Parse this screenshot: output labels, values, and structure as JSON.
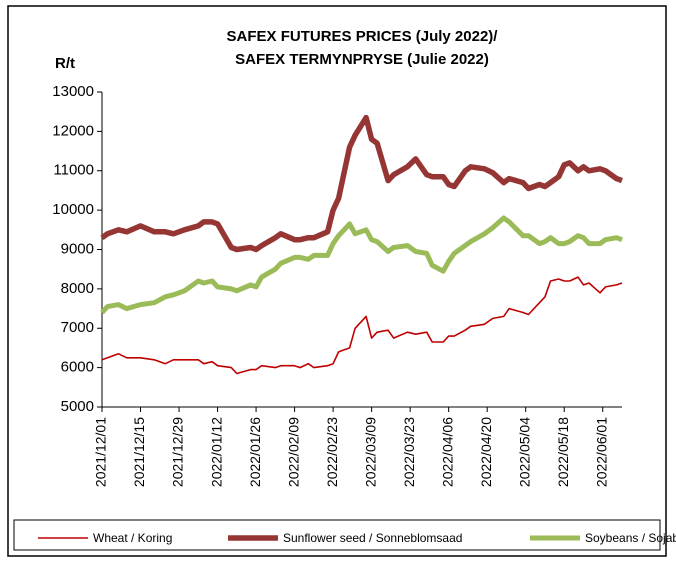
{
  "chart_data": {
    "type": "line",
    "title": [
      "SAFEX FUTURES PRICES (July 2022)/",
      "SAFEX TERMYNPRYSE  (Julie 2022)"
    ],
    "y_label": "R/t",
    "x": [
      "2021/12/01",
      "2021/12/03",
      "2021/12/07",
      "2021/12/10",
      "2021/12/15",
      "2021/12/20",
      "2021/12/24",
      "2021/12/27",
      "2021/12/31",
      "2022/01/05",
      "2022/01/07",
      "2022/01/10",
      "2022/01/12",
      "2022/01/17",
      "2022/01/19",
      "2022/01/24",
      "2022/01/26",
      "2022/01/28",
      "2022/02/02",
      "2022/02/04",
      "2022/02/09",
      "2022/02/11",
      "2022/02/14",
      "2022/02/16",
      "2022/02/21",
      "2022/02/23",
      "2022/02/25",
      "2022/03/01",
      "2022/03/03",
      "2022/03/07",
      "2022/03/09",
      "2022/03/11",
      "2022/03/15",
      "2022/03/17",
      "2022/03/22",
      "2022/03/25",
      "2022/03/29",
      "2022/03/31",
      "2022/04/04",
      "2022/04/06",
      "2022/04/08",
      "2022/04/12",
      "2022/04/14",
      "2022/04/19",
      "2022/04/22",
      "2022/04/26",
      "2022/04/28",
      "2022/05/03",
      "2022/05/05",
      "2022/05/09",
      "2022/05/11",
      "2022/05/13",
      "2022/05/16",
      "2022/05/18",
      "2022/05/20",
      "2022/05/23",
      "2022/05/25",
      "2022/05/27",
      "2022/05/31",
      "2022/06/02",
      "2022/06/06",
      "2022/06/08"
    ],
    "series": [
      {
        "name": "Wheat / Koring",
        "color": "#c00000",
        "values": [
          6200,
          6250,
          6350,
          6250,
          6250,
          6200,
          6100,
          6200,
          6200,
          6200,
          6100,
          6150,
          6050,
          6000,
          5850,
          5950,
          5950,
          6050,
          6000,
          6050,
          6050,
          6000,
          6100,
          6000,
          6050,
          6100,
          6400,
          6500,
          7000,
          7300,
          6750,
          6900,
          6950,
          6750,
          6900,
          6850,
          6900,
          6650,
          6650,
          6800,
          6800,
          6950,
          7050,
          7100,
          7250,
          7300,
          7500,
          7400,
          7350,
          7650,
          7800,
          8200,
          8250,
          8200,
          8200,
          8300,
          8100,
          8150,
          7900,
          8050,
          8100,
          8150
        ]
      },
      {
        "name": "Sunflower seed / Sonneblomsaad",
        "color": "#963634",
        "values": [
          9300,
          9400,
          9500,
          9450,
          9600,
          9450,
          9450,
          9400,
          9500,
          9600,
          9700,
          9700,
          9650,
          9050,
          9000,
          9050,
          9000,
          9100,
          9300,
          9400,
          9250,
          9250,
          9300,
          9300,
          9450,
          10000,
          10300,
          11600,
          11900,
          12350,
          11800,
          11700,
          10750,
          10900,
          11100,
          11300,
          10900,
          10850,
          10850,
          10650,
          10600,
          11000,
          11100,
          11050,
          10950,
          10700,
          10800,
          10700,
          10550,
          10650,
          10600,
          10700,
          10850,
          11150,
          11200,
          11000,
          11100,
          11000,
          11050,
          11000,
          10800,
          10750
        ]
      },
      {
        "name": "Soybeans / Sojabone",
        "color": "#9bbb59",
        "values": [
          7400,
          7550,
          7600,
          7500,
          7600,
          7650,
          7800,
          7850,
          7950,
          8200,
          8150,
          8200,
          8050,
          8000,
          7950,
          8100,
          8050,
          8300,
          8500,
          8650,
          8800,
          8800,
          8750,
          8850,
          8850,
          9150,
          9350,
          9650,
          9400,
          9500,
          9250,
          9200,
          8950,
          9050,
          9100,
          8950,
          8900,
          8600,
          8450,
          8700,
          8900,
          9100,
          9200,
          9400,
          9550,
          9800,
          9700,
          9350,
          9350,
          9150,
          9200,
          9300,
          9150,
          9150,
          9200,
          9350,
          9300,
          9150,
          9150,
          9250,
          9300,
          9250
        ]
      }
    ],
    "xlim": [
      "2021/12/01",
      "2022/06/08"
    ],
    "xticks": [
      "2021/12/01",
      "2021/12/15",
      "2021/12/29",
      "2022/01/12",
      "2022/01/26",
      "2022/02/09",
      "2022/02/23",
      "2022/03/09",
      "2022/03/23",
      "2022/04/06",
      "2022/04/20",
      "2022/05/04",
      "2022/05/18",
      "2022/06/01"
    ],
    "ylim": [
      5000,
      13000
    ],
    "yticks": [
      5000,
      6000,
      7000,
      8000,
      9000,
      10000,
      11000,
      12000,
      13000
    ],
    "legend": "bottom"
  }
}
